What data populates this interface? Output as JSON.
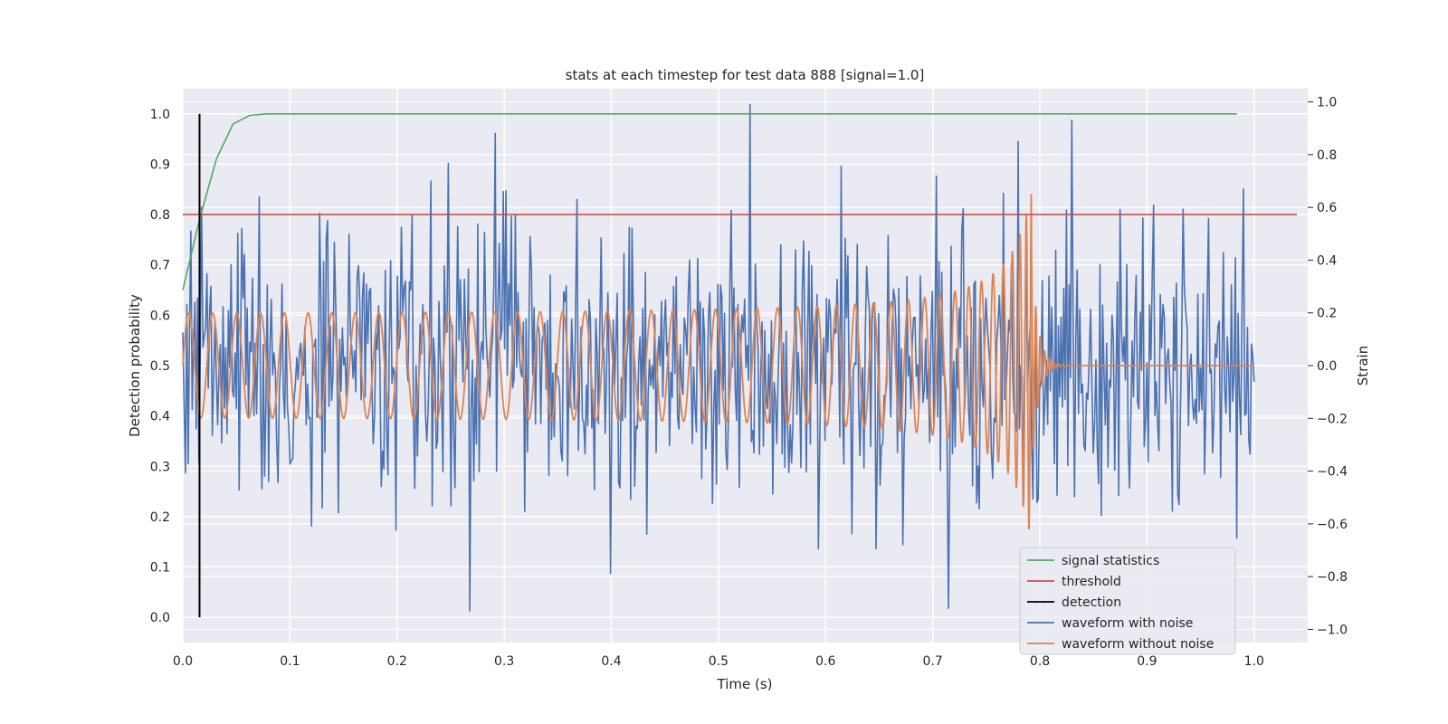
{
  "chart_data": {
    "type": "line",
    "title": "stats at each timestep for test data 888 [signal=1.0]",
    "xlabel": "Time (s)",
    "ylabel_left": "Detection probability",
    "ylabel_right": "Strain",
    "xlim": [
      0.0,
      1.05
    ],
    "ylim_left": [
      -0.05,
      1.05
    ],
    "ylim_right": [
      -1.05,
      1.05
    ],
    "x_ticks": [
      0.0,
      0.1,
      0.2,
      0.3,
      0.4,
      0.5,
      0.6,
      0.7,
      0.8,
      0.9,
      1.0
    ],
    "x_tick_labels": [
      "0.0",
      "0.1",
      "0.2",
      "0.3",
      "0.4",
      "0.5",
      "0.6",
      "0.7",
      "0.8",
      "0.9",
      "1.0"
    ],
    "y_left_ticks": [
      0.0,
      0.1,
      0.2,
      0.3,
      0.4,
      0.5,
      0.6,
      0.7,
      0.8,
      0.9,
      1.0
    ],
    "y_left_tick_labels": [
      "0.0",
      "0.1",
      "0.2",
      "0.3",
      "0.4",
      "0.5",
      "0.6",
      "0.7",
      "0.8",
      "0.9",
      "1.0"
    ],
    "y_right_ticks": [
      -1.0,
      -0.8,
      -0.6,
      -0.4,
      -0.2,
      0.0,
      0.2,
      0.4,
      0.6,
      0.8,
      1.0
    ],
    "y_right_tick_labels": [
      "−1.0",
      "−0.8",
      "−0.6",
      "−0.4",
      "−0.2",
      "0.0",
      "0.2",
      "0.4",
      "0.6",
      "0.8",
      "1.0"
    ],
    "grid": true,
    "legend_position": "lower-right",
    "series": [
      {
        "name": "signal statistics",
        "color": "#55a868",
        "axis": "left",
        "x": [
          0.0,
          0.0156,
          0.0313,
          0.0469,
          0.0625,
          0.0781,
          0.1,
          0.2,
          0.3,
          0.4,
          0.5,
          0.6,
          0.7,
          0.8,
          0.9,
          0.984
        ],
        "y": [
          0.65,
          0.79,
          0.91,
          0.98,
          0.997,
          1.0,
          1.0,
          1.0,
          1.0,
          1.0,
          1.0,
          1.0,
          1.0,
          1.0,
          1.0,
          1.0
        ]
      },
      {
        "name": "threshold",
        "color": "#c44e52",
        "axis": "left",
        "x": [
          0.0,
          1.04
        ],
        "y": [
          0.8,
          0.8
        ]
      },
      {
        "name": "detection",
        "color": "#000000",
        "axis": "left",
        "x": [
          0.0156,
          0.0156
        ],
        "y": [
          0.0,
          1.0
        ]
      },
      {
        "name": "waveform with noise",
        "color": "#4c72b0",
        "axis": "right",
        "x_range": [
          0.0,
          1.0
        ],
        "n_samples": 800,
        "std": 0.27,
        "peaks": [
          [
            0.018,
            0.6
          ],
          [
            0.055,
            0.52
          ],
          [
            0.135,
            0.55
          ],
          [
            0.232,
            0.7
          ],
          [
            0.268,
            -0.93
          ],
          [
            0.368,
            0.63
          ],
          [
            0.53,
            1.0
          ],
          [
            0.715,
            -0.92
          ],
          [
            0.78,
            0.85
          ],
          [
            0.83,
            0.93
          ],
          [
            0.99,
            0.67
          ]
        ]
      },
      {
        "name": "waveform without noise",
        "color": "#dd8452",
        "axis": "right",
        "x_range": [
          0.0,
          1.0
        ],
        "n_samples": 4000,
        "merger_time": 0.792,
        "base_amplitude": 0.19,
        "peak_amplitude": 0.68,
        "base_frequency_hz": 40,
        "end_frequency_hz": 240
      }
    ]
  }
}
